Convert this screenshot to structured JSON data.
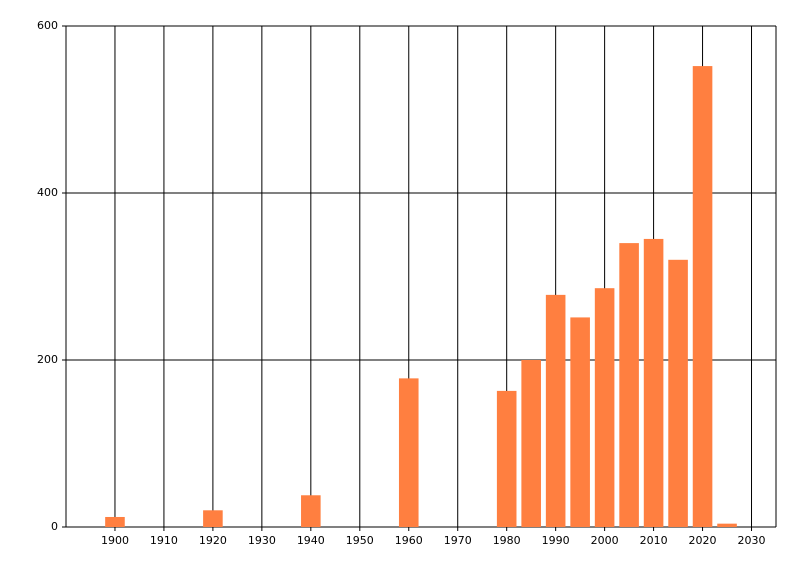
{
  "chart_data": {
    "type": "bar",
    "x": [
      1900,
      1920,
      1940,
      1960,
      1980,
      1985,
      1990,
      1995,
      2000,
      2005,
      2010,
      2015,
      2020,
      2025
    ],
    "values": [
      12,
      20,
      38,
      178,
      163,
      200,
      278,
      251,
      286,
      340,
      345,
      320,
      552,
      4
    ],
    "color": "#ff7f40",
    "xlim": [
      1890,
      2035
    ],
    "xticks": [
      1900,
      1910,
      1920,
      1930,
      1940,
      1950,
      1960,
      1970,
      1980,
      1990,
      2000,
      2010,
      2020,
      2030
    ],
    "ylim": [
      0,
      600
    ],
    "yticks": [
      0,
      200,
      400,
      600
    ],
    "grid": true
  }
}
